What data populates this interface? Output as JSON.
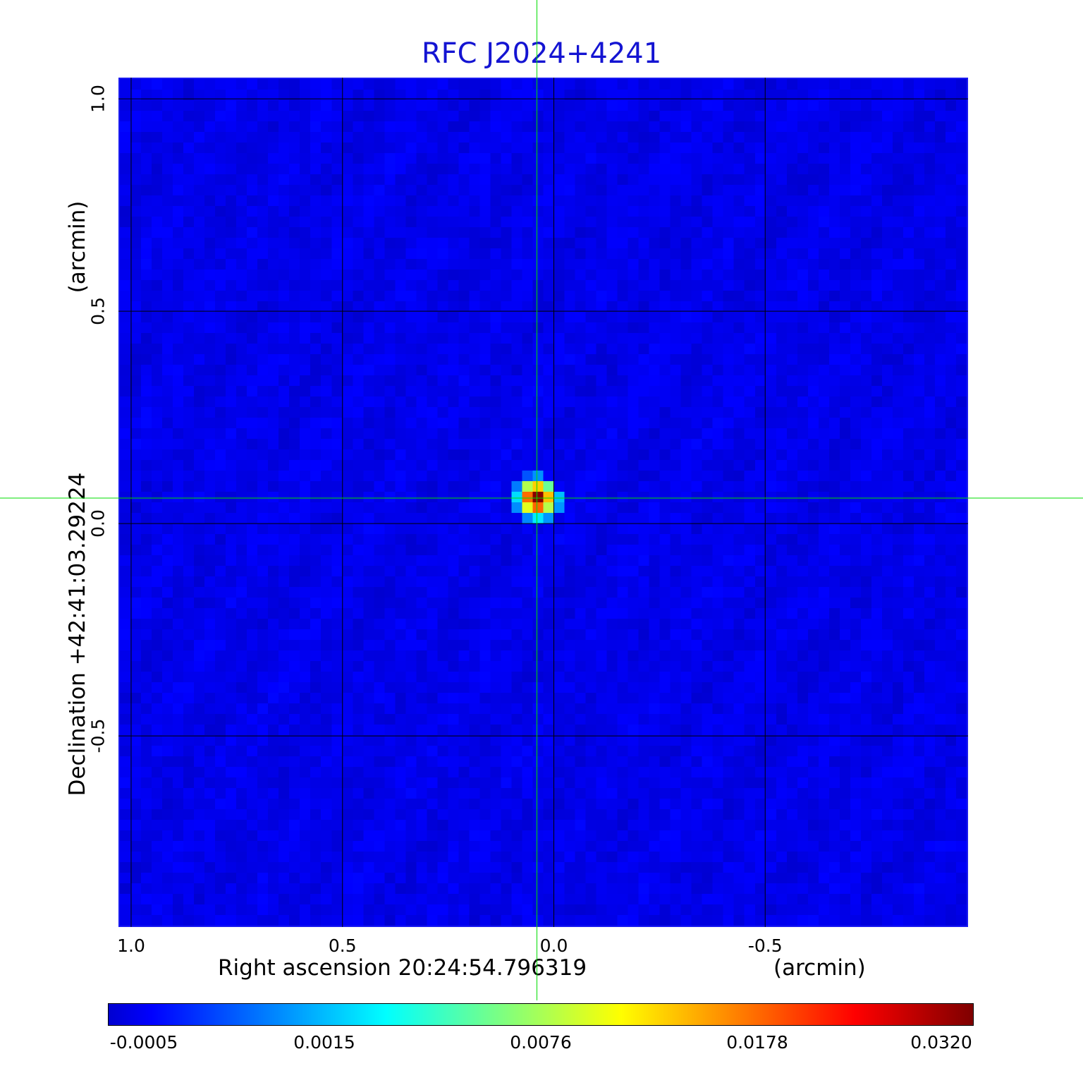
{
  "chart_data": {
    "type": "heatmap",
    "title": "RFC J2024+4241",
    "xlabel": "Right ascension  20:24:54.796319",
    "xunit": "(arcmin)",
    "ylabel": "Declination  +42:41:03.29224",
    "yunit": "(arcmin)",
    "xlim": [
      1.03,
      -0.98
    ],
    "ylim": [
      -0.95,
      1.05
    ],
    "x_ticks": [
      {
        "value": 1.0,
        "label": "1.0"
      },
      {
        "value": 0.5,
        "label": "0.5"
      },
      {
        "value": 0.0,
        "label": "0.0"
      },
      {
        "value": -0.5,
        "label": "-0.5"
      }
    ],
    "y_ticks": [
      {
        "value": 1.0,
        "label": "1.0"
      },
      {
        "value": 0.5,
        "label": "0.5"
      },
      {
        "value": 0.0,
        "label": "0.0"
      },
      {
        "value": -0.5,
        "label": "-0.5"
      }
    ],
    "grid": true,
    "source": {
      "x": 0.04,
      "y": 0.06,
      "peak": 0.032
    },
    "colormap": "jet",
    "colorbar": {
      "range": [
        -0.0005,
        0.032
      ],
      "ticks": [
        {
          "value": -0.0005,
          "label": "-0.0005"
        },
        {
          "value": 0.0015,
          "label": "0.0015"
        },
        {
          "value": 0.0076,
          "label": "0.0076"
        },
        {
          "value": 0.0178,
          "label": "0.0178"
        },
        {
          "value": 0.032,
          "label": "0.0320"
        }
      ]
    },
    "crosshair_color": "#00dd00"
  }
}
